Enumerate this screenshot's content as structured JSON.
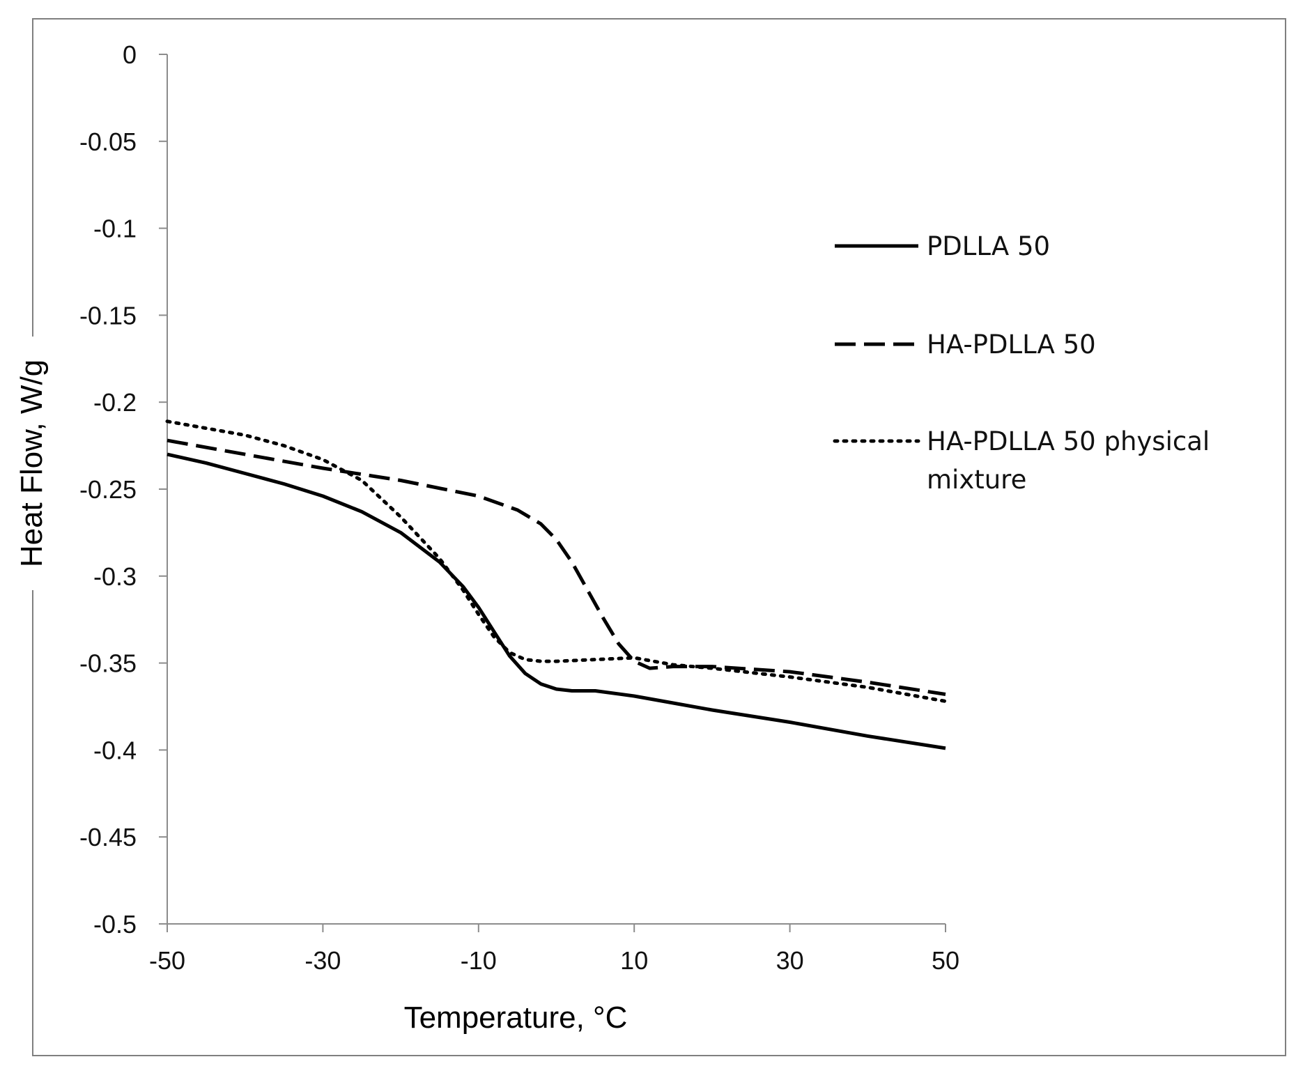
{
  "chart_data": {
    "type": "line",
    "xlabel": "Temperature, °C",
    "ylabel": "Heat Flow, W/g",
    "xlim": [
      -50,
      50
    ],
    "ylim": [
      -0.5,
      0
    ],
    "xticks": [
      "-50",
      "-30",
      "-10",
      "10",
      "30",
      "50"
    ],
    "xtick_values": [
      -50,
      -30,
      -10,
      10,
      30,
      50
    ],
    "yticks": [
      "0",
      "-0.05",
      "-0.1",
      "-0.15",
      "-0.2",
      "-0.25",
      "-0.3",
      "-0.35",
      "-0.4",
      "-0.45",
      "-0.5"
    ],
    "ytick_values": [
      0,
      -0.05,
      -0.1,
      -0.15,
      -0.2,
      -0.25,
      -0.3,
      -0.35,
      -0.4,
      -0.45,
      -0.5
    ],
    "grid": false,
    "legend_position": "right",
    "series": [
      {
        "name": "PDLLA 50",
        "style": "solid",
        "color": "#000000",
        "x": [
          -50,
          -45,
          -40,
          -35,
          -30,
          -25,
          -20,
          -15,
          -12,
          -10,
          -8,
          -6,
          -4,
          -2,
          0,
          2,
          5,
          10,
          15,
          20,
          30,
          40,
          50
        ],
        "y": [
          -0.23,
          -0.235,
          -0.241,
          -0.247,
          -0.254,
          -0.263,
          -0.275,
          -0.292,
          -0.306,
          -0.318,
          -0.332,
          -0.346,
          -0.356,
          -0.362,
          -0.365,
          -0.366,
          -0.366,
          -0.369,
          -0.373,
          -0.377,
          -0.384,
          -0.392,
          -0.399
        ]
      },
      {
        "name": "HA-PDLLA 50",
        "style": "dashed",
        "color": "#000000",
        "x": [
          -50,
          -40,
          -30,
          -20,
          -10,
          -5,
          -2,
          0,
          2,
          4,
          6,
          8,
          10,
          12,
          15,
          20,
          30,
          40,
          50
        ],
        "y": [
          -0.222,
          -0.23,
          -0.238,
          -0.245,
          -0.254,
          -0.262,
          -0.27,
          -0.279,
          -0.292,
          -0.308,
          -0.324,
          -0.339,
          -0.349,
          -0.353,
          -0.352,
          -0.352,
          -0.355,
          -0.361,
          -0.368
        ]
      },
      {
        "name": "HA-PDLLA 50 physical mixture",
        "style": "dotted",
        "color": "#000000",
        "x": [
          -50,
          -40,
          -35,
          -30,
          -25,
          -20,
          -15,
          -12,
          -10,
          -8,
          -6,
          -4,
          -2,
          0,
          5,
          10,
          15,
          20,
          30,
          40,
          50
        ],
        "y": [
          -0.211,
          -0.219,
          -0.225,
          -0.233,
          -0.245,
          -0.266,
          -0.29,
          -0.308,
          -0.322,
          -0.335,
          -0.344,
          -0.348,
          -0.349,
          -0.349,
          -0.348,
          -0.347,
          -0.351,
          -0.353,
          -0.358,
          -0.364,
          -0.372
        ]
      }
    ]
  }
}
